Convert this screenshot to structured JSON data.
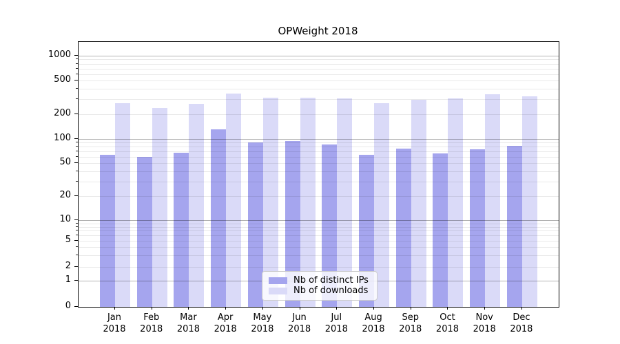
{
  "title": "OPWeight 2018",
  "chart_data": {
    "type": "bar",
    "title": "OPWeight 2018",
    "categories": [
      "Jan 2018",
      "Feb 2018",
      "Mar 2018",
      "Apr 2018",
      "May 2018",
      "Jun 2018",
      "Jul 2018",
      "Aug 2018",
      "Sep 2018",
      "Oct 2018",
      "Nov 2018",
      "Dec 2018"
    ],
    "series": [
      {
        "name": "Nb of distinct IPs",
        "color": "#a5a5ee",
        "values": [
          63,
          60,
          67,
          132,
          90,
          94,
          86,
          63,
          76,
          66,
          75,
          82
        ]
      },
      {
        "name": "Nb of downloads",
        "color": "#dadaf8",
        "values": [
          270,
          235,
          265,
          350,
          315,
          315,
          305,
          268,
          298,
          305,
          344,
          325
        ]
      }
    ],
    "yscale": "log-like with 0 baseline",
    "ylim": [
      0,
      1400
    ],
    "y_tick_values": [
      1000,
      500,
      200,
      100,
      50,
      20,
      10,
      5,
      2,
      1,
      0
    ],
    "y_tick_labels": [
      "1000",
      "500",
      "200",
      "100",
      "50",
      "20",
      "10",
      "5",
      "2",
      "1",
      "0"
    ],
    "grid": "horizontal major and minor gridlines drawn over bars",
    "legend_position": "lower center inside plot",
    "xlabel": "",
    "ylabel": ""
  },
  "x_axis": {
    "month_labels": [
      "Jan",
      "Feb",
      "Mar",
      "Apr",
      "May",
      "Jun",
      "Jul",
      "Aug",
      "Sep",
      "Oct",
      "Nov",
      "Dec"
    ],
    "year_label": "2018"
  },
  "colors": {
    "bar_distinct_ips": "#a5a5ee",
    "bar_downloads": "#dadaf8",
    "grid_major": "rgba(0,0,0,0.30)",
    "grid_minor": "rgba(0,0,0,0.085)",
    "axis": "#000000",
    "legend_border": "#cccccc"
  }
}
